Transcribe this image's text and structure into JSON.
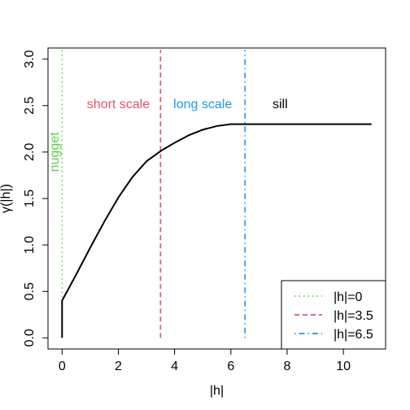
{
  "chart_data": {
    "type": "line",
    "xlabel": "|h|",
    "ylabel": "γ(|h|)",
    "xlim": [
      -0.5,
      11.5
    ],
    "ylim": [
      -0.12,
      3.12
    ],
    "x_ticks": [
      0,
      2,
      4,
      6,
      8,
      10
    ],
    "y_ticks": [
      0.0,
      0.5,
      1.0,
      1.5,
      2.0,
      2.5,
      3.0
    ],
    "x_tick_labels": [
      "0",
      "2",
      "4",
      "6",
      "8",
      "10"
    ],
    "y_tick_labels": [
      "0.0",
      "0.5",
      "1.0",
      "1.5",
      "2.0",
      "2.5",
      "3.0"
    ],
    "grid": false,
    "series": [
      {
        "color": "#000000",
        "x": [
          0,
          0,
          0.5,
          1.0,
          1.5,
          2.0,
          2.5,
          3.0,
          3.5,
          4.0,
          4.5,
          5.0,
          5.5,
          6.0,
          6.5,
          7.0,
          8.0,
          9.0,
          10.0,
          11.0
        ],
        "y": [
          0,
          0.4,
          0.68,
          0.97,
          1.25,
          1.51,
          1.73,
          1.9,
          2.01,
          2.1,
          2.18,
          2.24,
          2.28,
          2.3,
          2.3,
          2.3,
          2.3,
          2.3,
          2.3,
          2.3
        ]
      }
    ],
    "vlines": [
      {
        "x": 0,
        "color": "#61D04F",
        "dash": "dotted",
        "y_from": 0,
        "y_to": 3.1
      },
      {
        "x": 3.5,
        "color": "#DF536B",
        "dash": "dashed",
        "y_from": 0,
        "y_to": 3.1
      },
      {
        "x": 6.5,
        "color": "#2297E6",
        "dash": "dotdash",
        "y_from": 0,
        "y_to": 3.1
      }
    ],
    "annotations": [
      {
        "text": "nugget",
        "x": -0.12,
        "y": 2.0,
        "rotate": -90,
        "color": "#61D04F"
      },
      {
        "text": "short scale",
        "x": 2.0,
        "y": 2.47,
        "color": "#DF536B"
      },
      {
        "text": "long scale",
        "x": 5.0,
        "y": 2.47,
        "color": "#2297E6"
      },
      {
        "text": "sill",
        "x": 7.75,
        "y": 2.47,
        "color": "#000000"
      }
    ],
    "legend": {
      "position": "bottom-right",
      "entries": [
        {
          "label": "|h|=0",
          "color": "#61D04F",
          "dash": "dotted"
        },
        {
          "label": "|h|=3.5",
          "color": "#DF536B",
          "dash": "dashed"
        },
        {
          "label": "|h|=6.5",
          "color": "#2297E6",
          "dash": "dotdash"
        }
      ]
    }
  }
}
